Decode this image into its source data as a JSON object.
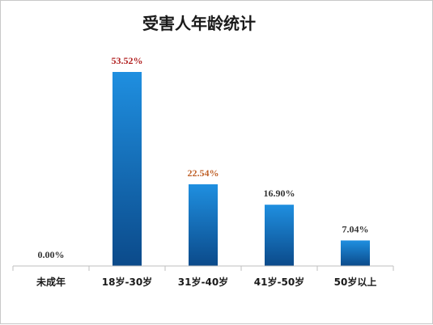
{
  "chart_data": {
    "type": "bar",
    "title": "受害人年龄统计",
    "categories": [
      "未成年",
      "18岁-30岁",
      "31岁-40岁",
      "41岁-50岁",
      "50岁以上"
    ],
    "values": [
      0.0,
      53.52,
      22.54,
      16.9,
      7.04
    ],
    "value_labels": [
      "0.00%",
      "53.52%",
      "22.54%",
      "16.90%",
      "7.04%"
    ],
    "label_colors": [
      "#333333",
      "#b22222",
      "#c0622a",
      "#333333",
      "#333333"
    ],
    "bar_color_top": "#1f8fe0",
    "bar_color_bottom": "#0b4a8a",
    "ylim": [
      0,
      55
    ],
    "grid": false,
    "legend": "none"
  }
}
